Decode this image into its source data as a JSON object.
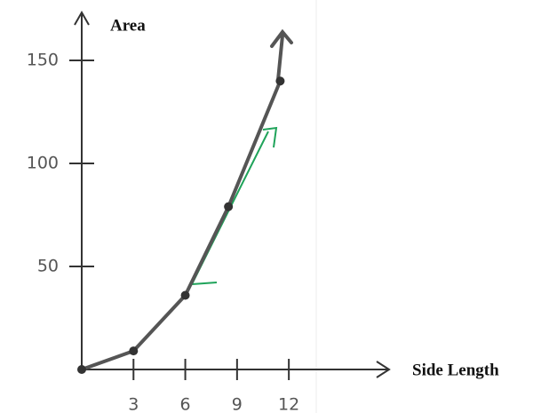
{
  "chart_data": {
    "type": "line",
    "x_label": "Side Length",
    "y_label": "Area",
    "x": [
      0,
      3,
      6,
      8.5,
      11.5
    ],
    "series": [
      {
        "color": "#555555",
        "values": [
          0,
          9,
          36,
          79,
          140
        ]
      }
    ],
    "xlim": [
      0,
      17.5
    ],
    "ylim": [
      0,
      172
    ],
    "xticks": [
      3,
      6,
      9,
      12
    ],
    "yticks": [
      50,
      100,
      150
    ]
  }
}
